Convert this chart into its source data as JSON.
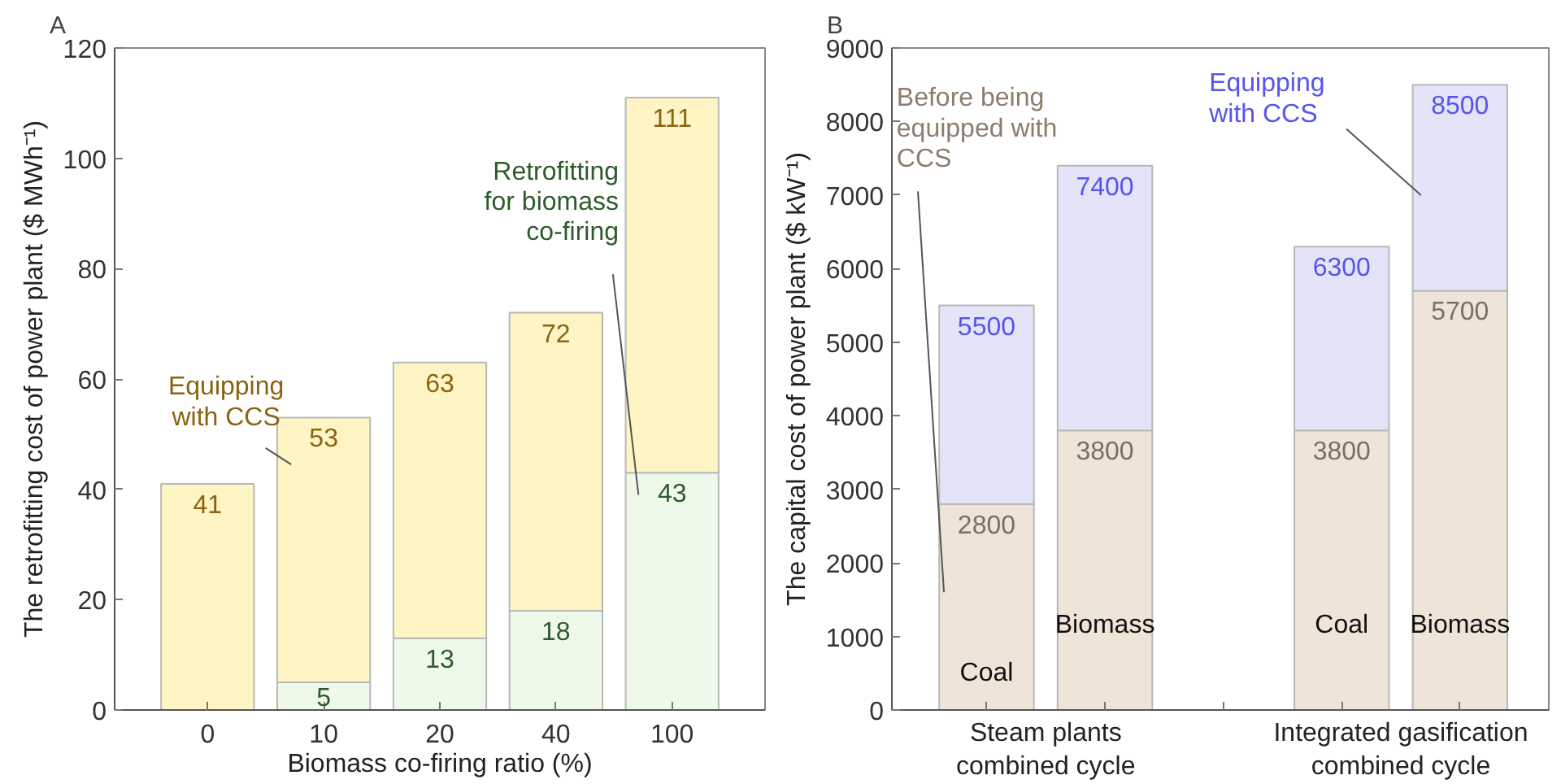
{
  "chart_data": [
    {
      "type": "bar",
      "title": "A",
      "stacked": true,
      "xlabel": "Biomass co-firing ratio (%)",
      "ylabel": "The retrofitting cost of power plant ($ MWh⁻¹)",
      "categories": [
        "0",
        "10",
        "20",
        "40",
        "100"
      ],
      "ylim": [
        0,
        120
      ],
      "yticks": [
        0,
        20,
        40,
        60,
        80,
        100,
        120
      ],
      "grid": false,
      "series": [
        {
          "color": "#eef9ea",
          "values": [
            null,
            5,
            13,
            18,
            43
          ],
          "value_labels": [
            null,
            "5",
            "13",
            "18",
            "43"
          ]
        },
        {
          "color": "#fff4c4",
          "values": [
            41,
            48,
            50,
            54,
            68
          ]
        }
      ],
      "totals": [
        "41",
        "53",
        "63",
        "72",
        "111"
      ],
      "annotations": [
        "Equipping\nwith CCS",
        "Retrofitting\nfor biomass\nco-firing"
      ]
    },
    {
      "type": "bar",
      "title": "B",
      "stacked": true,
      "ylabel": "The capital cost of power plant ($ kW⁻¹)",
      "categories": [
        "Coal",
        "Biomass",
        null,
        "Coal",
        "Biomass"
      ],
      "ylim": [
        0,
        9000
      ],
      "yticks": [
        0,
        1000,
        2000,
        3000,
        4000,
        5000,
        6000,
        7000,
        8000,
        9000
      ],
      "grid": false,
      "tick_labels": "y",
      "series": [
        {
          "color": "#efe4d8",
          "values": [
            2800,
            3800,
            null,
            3800,
            5700
          ],
          "value_labels": [
            "2800",
            "3800",
            null,
            "3800",
            "5700"
          ]
        },
        {
          "color": "#e4e4f8",
          "values": [
            2700,
            3600,
            null,
            2500,
            2800
          ]
        }
      ],
      "totals": [
        "5500",
        "7400",
        null,
        "6300",
        "8500"
      ],
      "annotations": [
        "Before being\nequipped with\nCCS",
        "Equipping\nwith CCS",
        "Steam plants\ncombined cycle",
        "Integrated gasification\ncombined cycle"
      ]
    }
  ]
}
